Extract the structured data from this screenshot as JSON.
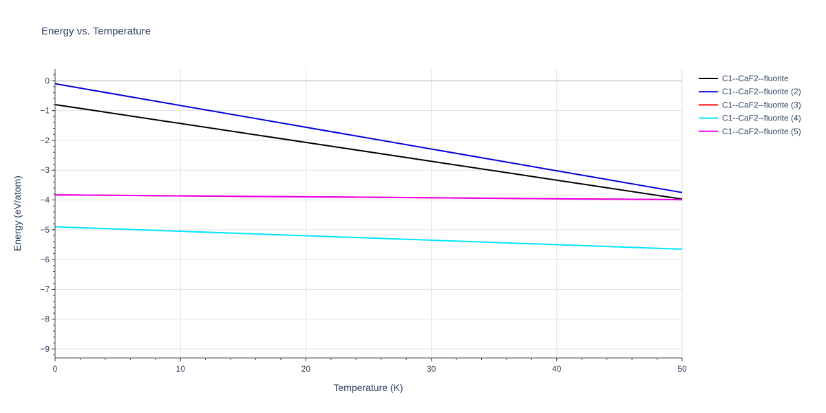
{
  "chart_data": {
    "type": "line",
    "title": "Energy vs. Temperature",
    "xlabel": "Temperature (K)",
    "ylabel": "Energy (eV/atom)",
    "xlim": [
      0,
      50
    ],
    "ylim": [
      -9.3,
      0.4
    ],
    "x_ticks": [
      0,
      10,
      20,
      30,
      40,
      50
    ],
    "y_ticks": [
      0,
      -1,
      -2,
      -3,
      -4,
      -5,
      -6,
      -7,
      -8,
      -9
    ],
    "y_tick_labels": [
      "0",
      "−1",
      "−2",
      "−3",
      "−4",
      "−5",
      "−6",
      "−7",
      "−8",
      "−9"
    ],
    "grid": true,
    "legend_position": "top-right outside",
    "series": [
      {
        "name": "C1--CaF2--fluorite",
        "color": "#000000",
        "x": [
          0,
          50
        ],
        "y": [
          -0.8,
          -3.97
        ]
      },
      {
        "name": "C1--CaF2--fluorite (2)",
        "color": "#0000dd",
        "x": [
          0,
          50
        ],
        "y": [
          -0.1,
          -3.75
        ]
      },
      {
        "name": "C1--CaF2--fluorite (3)",
        "color": "#ff0000",
        "x": [
          0,
          50
        ],
        "y": [
          -3.83,
          -3.99
        ]
      },
      {
        "name": "C1--CaF2--fluorite (4)",
        "color": "#00e5ff",
        "x": [
          0,
          50
        ],
        "y": [
          -4.9,
          -5.65
        ]
      },
      {
        "name": "C1--CaF2--fluorite (5)",
        "color": "#ee00ee",
        "x": [
          0,
          50
        ],
        "y": [
          -3.83,
          -3.99
        ]
      }
    ]
  }
}
